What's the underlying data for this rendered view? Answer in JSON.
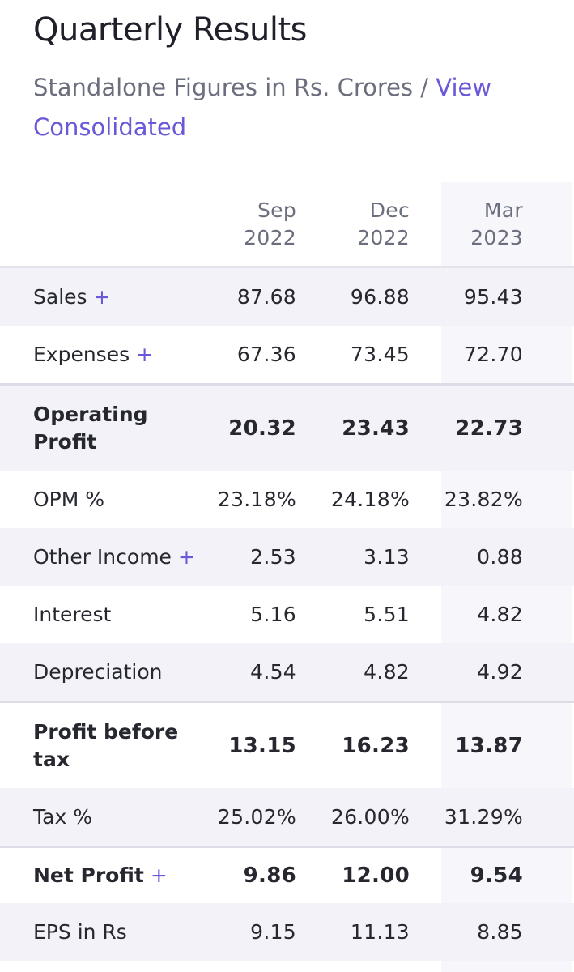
{
  "header": {
    "title": "Quarterly Results",
    "subtitle_prefix": "Standalone Figures in Rs. Crores / ",
    "subtitle_link": "View Consolidated"
  },
  "table": {
    "columns": [
      {
        "month": "Sep",
        "year": "2022"
      },
      {
        "month": "Dec",
        "year": "2022"
      },
      {
        "month": "Mar",
        "year": "2023"
      }
    ],
    "rows": [
      {
        "label": "Sales",
        "expandable": true,
        "values": [
          "87.68",
          "96.88",
          "95.43"
        ]
      },
      {
        "label": "Expenses",
        "expandable": true,
        "values": [
          "67.36",
          "73.45",
          "72.70"
        ]
      },
      {
        "label": "Operating Profit",
        "expandable": false,
        "values": [
          "20.32",
          "23.43",
          "22.73"
        ]
      },
      {
        "label": "OPM %",
        "expandable": false,
        "values": [
          "23.18%",
          "24.18%",
          "23.82%"
        ]
      },
      {
        "label": "Other Income",
        "expandable": true,
        "values": [
          "2.53",
          "3.13",
          "0.88"
        ]
      },
      {
        "label": "Interest",
        "expandable": false,
        "values": [
          "5.16",
          "5.51",
          "4.82"
        ]
      },
      {
        "label": "Depreciation",
        "expandable": false,
        "values": [
          "4.54",
          "4.82",
          "4.92"
        ]
      },
      {
        "label": "Profit before tax",
        "expandable": false,
        "values": [
          "13.15",
          "16.23",
          "13.87"
        ]
      },
      {
        "label": "Tax %",
        "expandable": false,
        "values": [
          "25.02%",
          "26.00%",
          "31.29%"
        ]
      },
      {
        "label": "Net Profit",
        "expandable": true,
        "values": [
          "9.86",
          "12.00",
          "9.54"
        ]
      },
      {
        "label": "EPS in Rs",
        "expandable": false,
        "values": [
          "9.15",
          "11.13",
          "8.85"
        ]
      }
    ],
    "expand_symbol": "+"
  },
  "colors": {
    "link": "#6959d8",
    "muted_text": "#6b6f7d",
    "row_shade": "#f2f2f8"
  }
}
